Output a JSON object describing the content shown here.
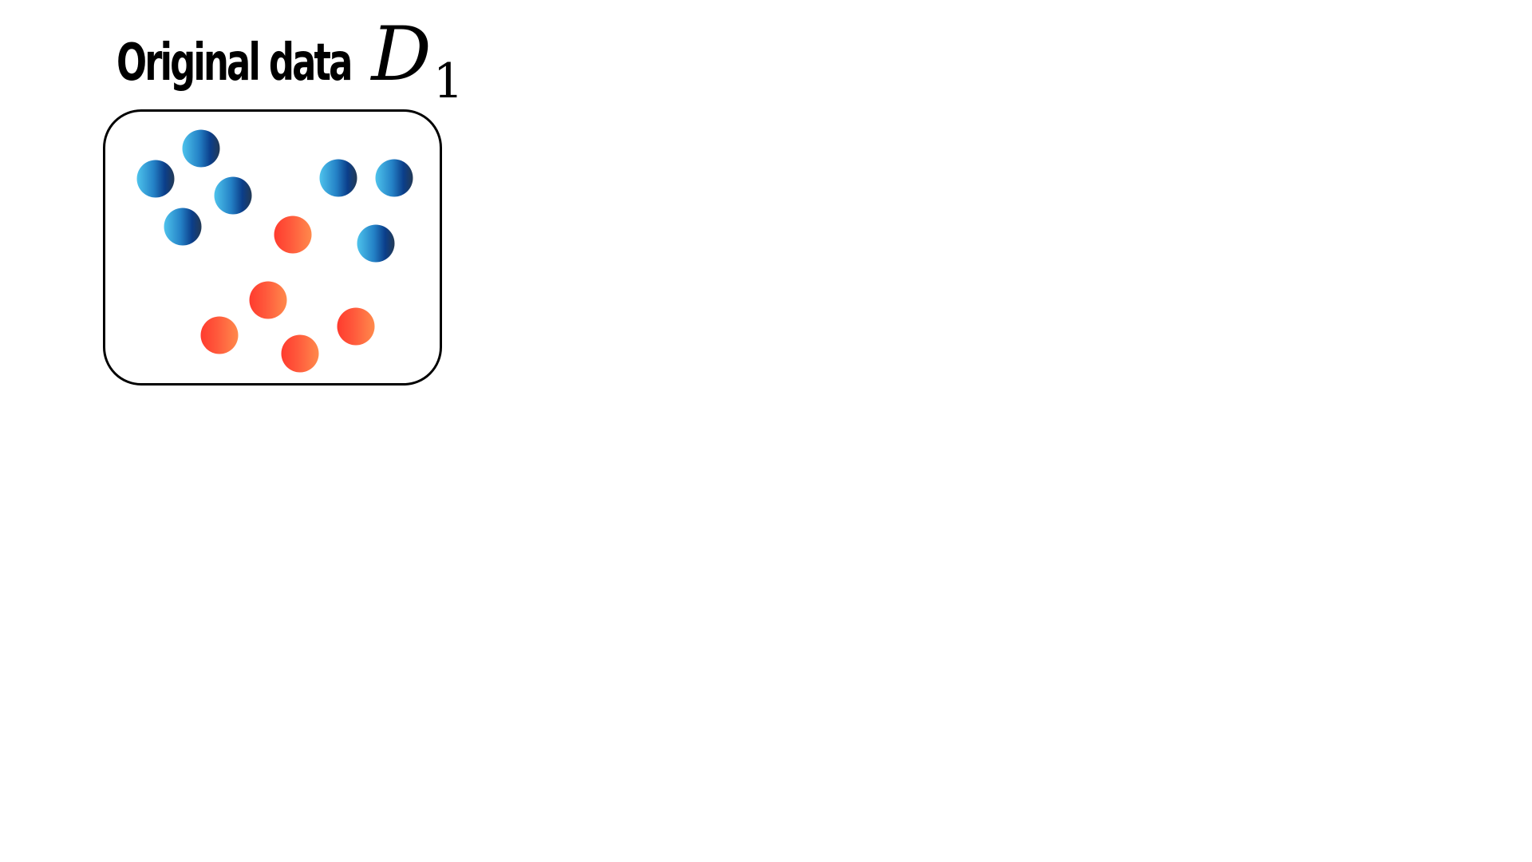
{
  "title": {
    "text": "Original data",
    "math": "D",
    "subscript": "1"
  },
  "colors": {
    "blue_light": "#4ec3ec",
    "blue_dark": "#0b3e8a",
    "red": "#ff3b2e",
    "orange": "#ff8a4c",
    "border": "#000000"
  },
  "points": [
    {
      "class": "blue"
    },
    {
      "class": "blue"
    },
    {
      "class": "blue"
    },
    {
      "class": "blue"
    },
    {
      "class": "blue"
    },
    {
      "class": "blue"
    },
    {
      "class": "blue"
    },
    {
      "class": "red"
    },
    {
      "class": "red"
    },
    {
      "class": "red"
    },
    {
      "class": "red"
    },
    {
      "class": "red"
    }
  ]
}
